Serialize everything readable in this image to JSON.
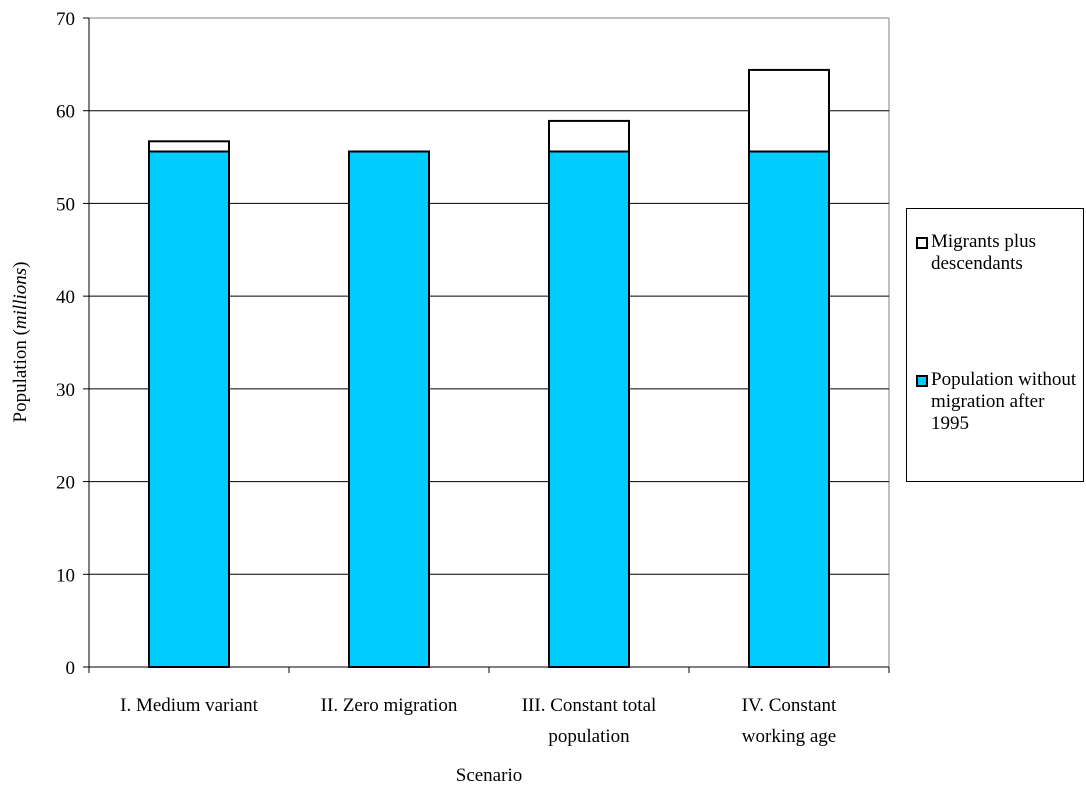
{
  "chart_data": {
    "type": "bar",
    "stacked": true,
    "title": "",
    "xlabel": "Scenario",
    "ylabel": "Population",
    "ylabel_unit": "millions",
    "ylim": [
      0,
      70
    ],
    "yticks": [
      0,
      10,
      20,
      30,
      40,
      50,
      60,
      70
    ],
    "grid": true,
    "legend_position": "right",
    "categories": [
      [
        "I. Medium variant"
      ],
      [
        "II. Zero migration"
      ],
      [
        "III. Constant total",
        "population"
      ],
      [
        "IV. Constant",
        "working age"
      ]
    ],
    "series": [
      {
        "name": "Population without migration after 1995",
        "color": "#00ccff",
        "values": [
          55.6,
          55.6,
          55.6,
          55.6
        ]
      },
      {
        "name": "Migrants plus descendants",
        "color": "#ffffff",
        "values": [
          1.1,
          0.0,
          3.3,
          8.8
        ]
      }
    ],
    "legend": [
      {
        "label": "Migrants plus descendants",
        "color": "#ffffff"
      },
      {
        "label": "Population without migration after 1995",
        "color": "#00ccff"
      }
    ]
  }
}
